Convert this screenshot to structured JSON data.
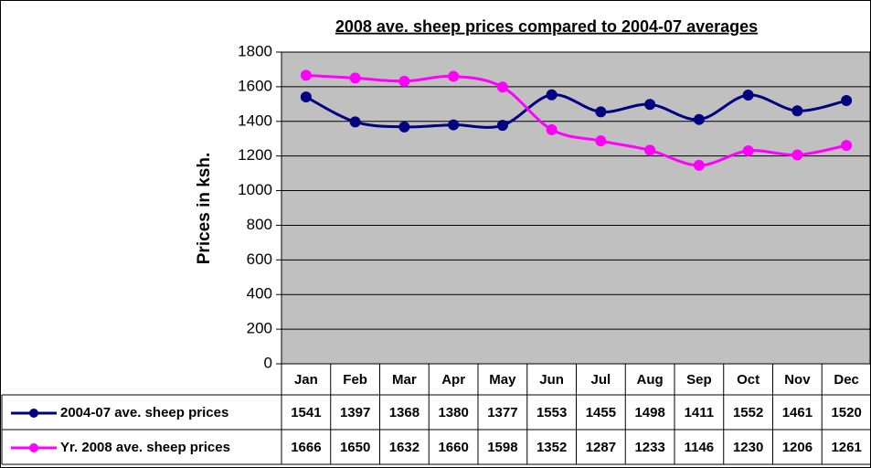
{
  "chart_data": {
    "type": "line",
    "title": "2008 ave. sheep prices compared to 2004-07 averages",
    "y_label": "Prices in ksh.",
    "categories": [
      "Jan",
      "Feb",
      "Mar",
      "Apr",
      "May",
      "Jun",
      "Jul",
      "Aug",
      "Sep",
      "Oct",
      "Nov",
      "Dec"
    ],
    "series": [
      {
        "name": "2004-07 ave. sheep prices",
        "color": "#000080",
        "values": [
          1541,
          1397,
          1368,
          1380,
          1377,
          1553,
          1455,
          1498,
          1411,
          1552,
          1461,
          1520
        ]
      },
      {
        "name": "Yr. 2008 ave. sheep prices",
        "color": "#ff00ff",
        "values": [
          1666,
          1650,
          1632,
          1660,
          1598,
          1352,
          1287,
          1233,
          1146,
          1230,
          1206,
          1261
        ]
      }
    ],
    "ylim": [
      0,
      1800
    ],
    "yticks": [
      0,
      200,
      400,
      600,
      800,
      1000,
      1200,
      1400,
      1600,
      1800
    ],
    "grid": true,
    "smooth": true,
    "data_table": true
  }
}
